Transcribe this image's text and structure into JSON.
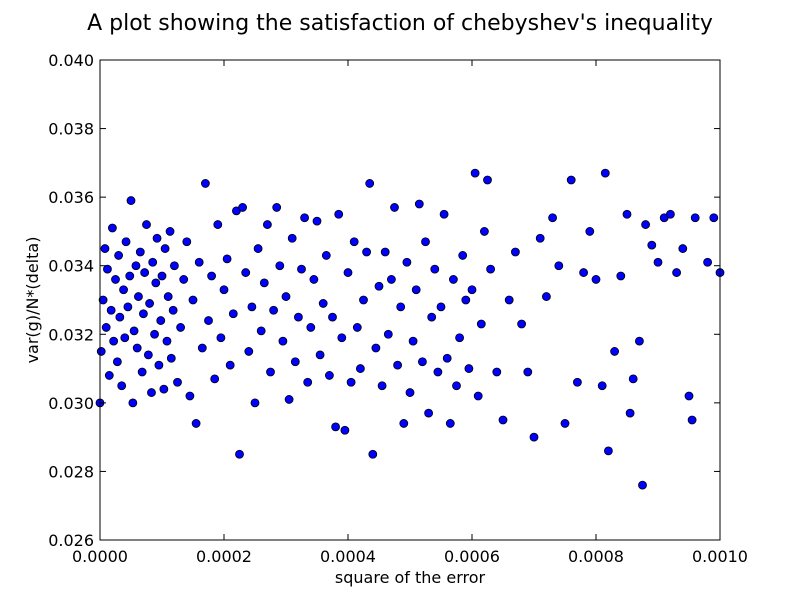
{
  "chart_data": {
    "type": "scatter",
    "title": "A plot showing the satisfaction of chebyshev's inequality",
    "xlabel": "square of the error",
    "ylabel": "var(g)/N*(delta)",
    "xlim": [
      0.0,
      0.001
    ],
    "ylim": [
      0.026,
      0.04
    ],
    "x_ticks": [
      "0.0000",
      "0.0002",
      "0.0004",
      "0.0006",
      "0.0008",
      "0.0010"
    ],
    "y_ticks": [
      "0.026",
      "0.028",
      "0.030",
      "0.032",
      "0.034",
      "0.036",
      "0.038",
      "0.040"
    ],
    "grid": false,
    "marker_color": "#0000ff",
    "marker_edge": "#000000",
    "points": [
      [
        0.0,
        0.03
      ],
      [
        2e-06,
        0.0315
      ],
      [
        5e-06,
        0.033
      ],
      [
        8e-06,
        0.0345
      ],
      [
        1e-05,
        0.0322
      ],
      [
        1.2e-05,
        0.0339
      ],
      [
        1.5e-05,
        0.0308
      ],
      [
        1.8e-05,
        0.0327
      ],
      [
        2e-05,
        0.0351
      ],
      [
        2.2e-05,
        0.0318
      ],
      [
        2.5e-05,
        0.0336
      ],
      [
        2.8e-05,
        0.0312
      ],
      [
        3e-05,
        0.0343
      ],
      [
        3.2e-05,
        0.0325
      ],
      [
        3.5e-05,
        0.0305
      ],
      [
        3.8e-05,
        0.0333
      ],
      [
        4e-05,
        0.0319
      ],
      [
        4.2e-05,
        0.0347
      ],
      [
        4.5e-05,
        0.0328
      ],
      [
        4.8e-05,
        0.0337
      ],
      [
        5e-05,
        0.0359
      ],
      [
        5.3e-05,
        0.03
      ],
      [
        5.5e-05,
        0.0321
      ],
      [
        5.8e-05,
        0.034
      ],
      [
        6e-05,
        0.0316
      ],
      [
        6.2e-05,
        0.0331
      ],
      [
        6.5e-05,
        0.0344
      ],
      [
        6.8e-05,
        0.0309
      ],
      [
        7e-05,
        0.0326
      ],
      [
        7.2e-05,
        0.0338
      ],
      [
        7.5e-05,
        0.0352
      ],
      [
        7.8e-05,
        0.0314
      ],
      [
        8e-05,
        0.0329
      ],
      [
        8.3e-05,
        0.0303
      ],
      [
        8.5e-05,
        0.0341
      ],
      [
        8.8e-05,
        0.032
      ],
      [
        9e-05,
        0.0335
      ],
      [
        9.2e-05,
        0.0348
      ],
      [
        9.5e-05,
        0.0311
      ],
      [
        9.8e-05,
        0.0324
      ],
      [
        0.0001,
        0.0337
      ],
      [
        0.000103,
        0.0304
      ],
      [
        0.000105,
        0.0345
      ],
      [
        0.000108,
        0.0318
      ],
      [
        0.00011,
        0.0331
      ],
      [
        0.000113,
        0.035
      ],
      [
        0.000115,
        0.0313
      ],
      [
        0.000118,
        0.0327
      ],
      [
        0.00012,
        0.034
      ],
      [
        0.000125,
        0.0306
      ],
      [
        0.00013,
        0.0322
      ],
      [
        0.000135,
        0.0336
      ],
      [
        0.00014,
        0.0347
      ],
      [
        0.000145,
        0.0302
      ],
      [
        0.00015,
        0.033
      ],
      [
        0.000155,
        0.0294
      ],
      [
        0.00016,
        0.0341
      ],
      [
        0.000165,
        0.0316
      ],
      [
        0.00017,
        0.0364
      ],
      [
        0.000175,
        0.0324
      ],
      [
        0.00018,
        0.0337
      ],
      [
        0.000185,
        0.0307
      ],
      [
        0.00019,
        0.0352
      ],
      [
        0.000195,
        0.0319
      ],
      [
        0.0002,
        0.0333
      ],
      [
        0.000205,
        0.0342
      ],
      [
        0.00021,
        0.0311
      ],
      [
        0.000215,
        0.0326
      ],
      [
        0.00022,
        0.0356
      ],
      [
        0.000225,
        0.0285
      ],
      [
        0.00023,
        0.0357
      ],
      [
        0.000235,
        0.0338
      ],
      [
        0.00024,
        0.0315
      ],
      [
        0.000245,
        0.0328
      ],
      [
        0.00025,
        0.03
      ],
      [
        0.000255,
        0.0345
      ],
      [
        0.00026,
        0.0321
      ],
      [
        0.000265,
        0.0335
      ],
      [
        0.00027,
        0.0352
      ],
      [
        0.000275,
        0.0309
      ],
      [
        0.00028,
        0.0327
      ],
      [
        0.000285,
        0.0357
      ],
      [
        0.00029,
        0.034
      ],
      [
        0.000295,
        0.0318
      ],
      [
        0.0003,
        0.0331
      ],
      [
        0.000305,
        0.0301
      ],
      [
        0.00031,
        0.0348
      ],
      [
        0.000315,
        0.0312
      ],
      [
        0.00032,
        0.0325
      ],
      [
        0.000325,
        0.0339
      ],
      [
        0.00033,
        0.0354
      ],
      [
        0.000335,
        0.0306
      ],
      [
        0.00034,
        0.0322
      ],
      [
        0.000345,
        0.0336
      ],
      [
        0.00035,
        0.0353
      ],
      [
        0.000355,
        0.0314
      ],
      [
        0.00036,
        0.0329
      ],
      [
        0.000365,
        0.0343
      ],
      [
        0.00037,
        0.0308
      ],
      [
        0.000375,
        0.0325
      ],
      [
        0.00038,
        0.0293
      ],
      [
        0.000385,
        0.0355
      ],
      [
        0.00039,
        0.0319
      ],
      [
        0.000395,
        0.0292
      ],
      [
        0.0004,
        0.0338
      ],
      [
        0.000405,
        0.0306
      ],
      [
        0.00041,
        0.0347
      ],
      [
        0.000415,
        0.0322
      ],
      [
        0.00042,
        0.031
      ],
      [
        0.000425,
        0.033
      ],
      [
        0.00043,
        0.0344
      ],
      [
        0.000435,
        0.0364
      ],
      [
        0.00044,
        0.0285
      ],
      [
        0.000445,
        0.0316
      ],
      [
        0.00045,
        0.0334
      ],
      [
        0.000455,
        0.0305
      ],
      [
        0.00046,
        0.0344
      ],
      [
        0.000465,
        0.032
      ],
      [
        0.00047,
        0.0336
      ],
      [
        0.000475,
        0.0357
      ],
      [
        0.00048,
        0.0311
      ],
      [
        0.000485,
        0.0328
      ],
      [
        0.00049,
        0.0294
      ],
      [
        0.000495,
        0.0341
      ],
      [
        0.0005,
        0.0303
      ],
      [
        0.000505,
        0.0318
      ],
      [
        0.00051,
        0.0333
      ],
      [
        0.000515,
        0.0358
      ],
      [
        0.00052,
        0.0312
      ],
      [
        0.000525,
        0.0347
      ],
      [
        0.00053,
        0.0297
      ],
      [
        0.000535,
        0.0325
      ],
      [
        0.00054,
        0.0339
      ],
      [
        0.000545,
        0.0309
      ],
      [
        0.00055,
        0.0328
      ],
      [
        0.000555,
        0.0355
      ],
      [
        0.00056,
        0.0313
      ],
      [
        0.000565,
        0.0294
      ],
      [
        0.00057,
        0.0336
      ],
      [
        0.000575,
        0.0305
      ],
      [
        0.00058,
        0.0319
      ],
      [
        0.000585,
        0.0343
      ],
      [
        0.00059,
        0.033
      ],
      [
        0.000595,
        0.031
      ],
      [
        0.0006,
        0.0333
      ],
      [
        0.000605,
        0.0367
      ],
      [
        0.00061,
        0.0302
      ],
      [
        0.000615,
        0.0323
      ],
      [
        0.00062,
        0.035
      ],
      [
        0.000625,
        0.0365
      ],
      [
        0.00063,
        0.0339
      ],
      [
        0.00064,
        0.0309
      ],
      [
        0.00065,
        0.0295
      ],
      [
        0.00066,
        0.033
      ],
      [
        0.00067,
        0.0344
      ],
      [
        0.00068,
        0.0323
      ],
      [
        0.00069,
        0.0309
      ],
      [
        0.0007,
        0.029
      ],
      [
        0.00071,
        0.0348
      ],
      [
        0.00072,
        0.0331
      ],
      [
        0.00073,
        0.0354
      ],
      [
        0.00074,
        0.034
      ],
      [
        0.00075,
        0.0294
      ],
      [
        0.00076,
        0.0365
      ],
      [
        0.00077,
        0.0306
      ],
      [
        0.00078,
        0.0338
      ],
      [
        0.00079,
        0.035
      ],
      [
        0.0008,
        0.0336
      ],
      [
        0.00081,
        0.0305
      ],
      [
        0.000815,
        0.0367
      ],
      [
        0.00082,
        0.0286
      ],
      [
        0.00083,
        0.0315
      ],
      [
        0.00084,
        0.0337
      ],
      [
        0.00085,
        0.0355
      ],
      [
        0.000855,
        0.0297
      ],
      [
        0.00086,
        0.0307
      ],
      [
        0.00087,
        0.0318
      ],
      [
        0.000875,
        0.0276
      ],
      [
        0.00088,
        0.0352
      ],
      [
        0.00089,
        0.0346
      ],
      [
        0.0009,
        0.0341
      ],
      [
        0.00091,
        0.0354
      ],
      [
        0.00092,
        0.0355
      ],
      [
        0.00093,
        0.0338
      ],
      [
        0.00094,
        0.0345
      ],
      [
        0.00095,
        0.0302
      ],
      [
        0.000955,
        0.0295
      ],
      [
        0.00096,
        0.0354
      ],
      [
        0.00098,
        0.0341
      ],
      [
        0.00099,
        0.0354
      ],
      [
        0.001,
        0.0338
      ]
    ]
  }
}
